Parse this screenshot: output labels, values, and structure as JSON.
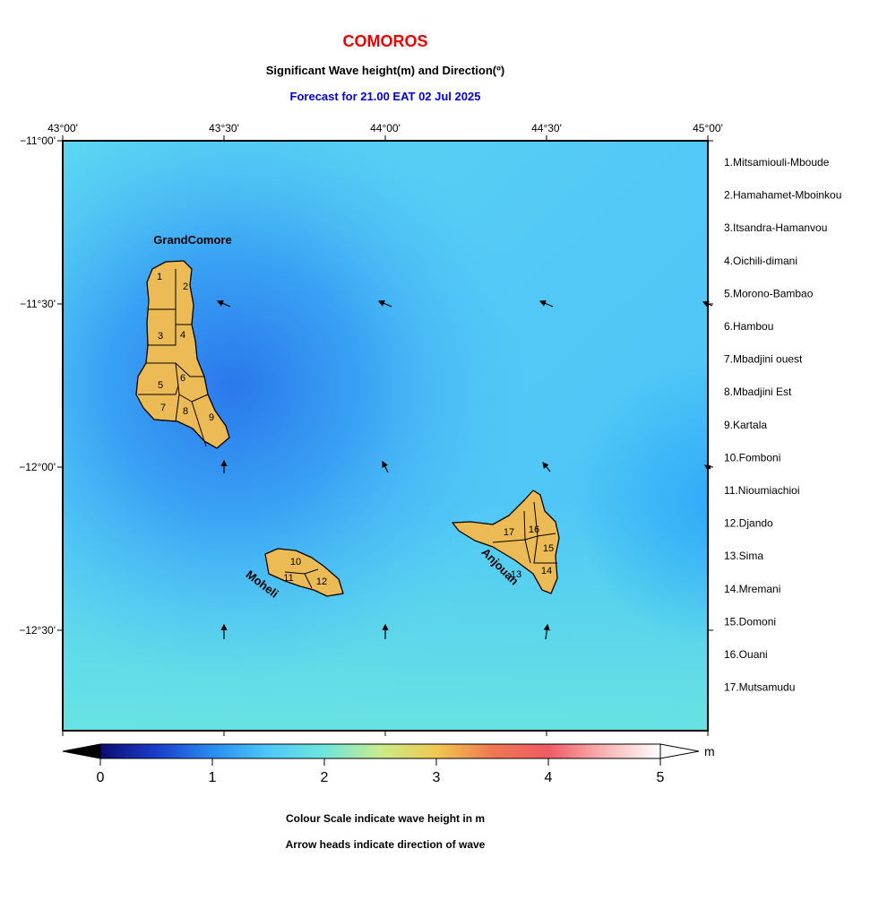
{
  "header": {
    "title": "COMOROS",
    "subtitle": "Significant Wave height(m) and Direction(º)",
    "forecast": "Forecast for  21.00 EAT 02 Jul 2025"
  },
  "map": {
    "lon_ticks": [
      "43°00'",
      "43°30'",
      "44°00'",
      "44°30'",
      "45°00'"
    ],
    "lat_ticks": [
      "−11°00'",
      "−11°30'",
      "−12°00'",
      "−12°30'"
    ],
    "islands": [
      "GrandComore",
      "Moheli",
      "Anjouan"
    ],
    "region_numbers": [
      "1",
      "2",
      "3",
      "4",
      "5",
      "6",
      "7",
      "8",
      "9",
      "10",
      "11",
      "12",
      "13",
      "14",
      "15",
      "16",
      "17"
    ]
  },
  "regions": [
    "1.Mitsamiouli-Mboude",
    "2.Hamahamet-Mboinkou",
    "3.Itsandra-Hamanvou",
    "4.Oichili-dimani",
    "5.Morono-Bambao",
    "6.Hambou",
    "7.Mbadjini ouest",
    "8.Mbadjini Est",
    "9.Kartala",
    "10.Fomboni",
    "11.Nioumiachioi",
    "12.Djando",
    "13.Sima",
    "14.Mremani",
    "15.Domoni",
    "16.Ouani",
    "17.Mutsamudu"
  ],
  "colorbar": {
    "ticks": [
      0,
      1,
      2,
      3,
      4,
      5
    ],
    "unit": "m"
  },
  "notes": [
    "Colour Scale indicate wave height in m",
    "Arrow heads indicate direction of wave"
  ]
}
